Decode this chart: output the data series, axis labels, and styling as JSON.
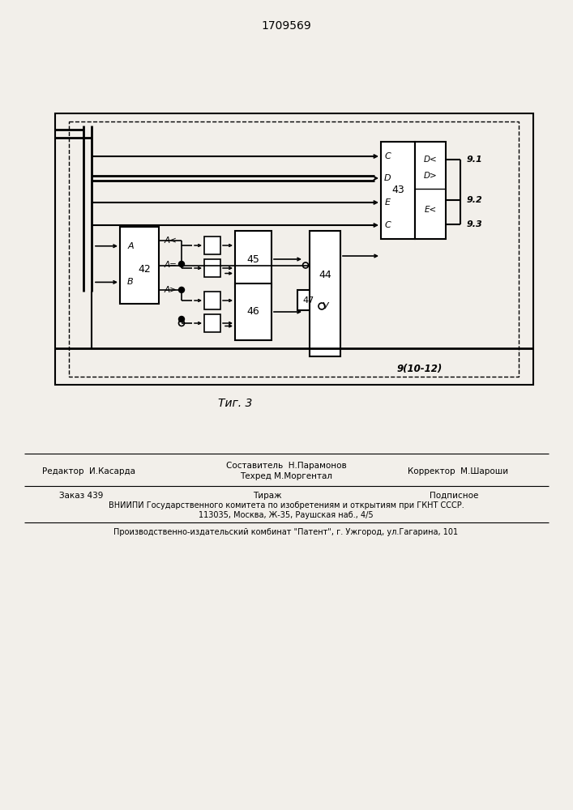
{
  "title": "1709569",
  "fig_label": "Τиг. 3",
  "bg_color": "#f2efea",
  "line_color": "#1a1a1a",
  "footer_editor": "Редактор  И.Касарда",
  "footer_comp": "Составитель  Н.Парамонов",
  "footer_tech": "Техред М.Моргентал",
  "footer_corr": "Корректор  М.Шароши",
  "footer_order": "Заказ 439",
  "footer_tirazh": "Тираж",
  "footer_podp": "Подписное",
  "footer_vniiipi": "ВНИИПИ Государственного комитета по изобретениям и открытиям при ГКНТ СССР.",
  "footer_addr": "113035, Москва, Ж-35, Раушская наб., 4/5",
  "footer_patent": "Производственно-издательский комбинат \"Патент\", г. Ужгород, ул.Гагарина, 101"
}
